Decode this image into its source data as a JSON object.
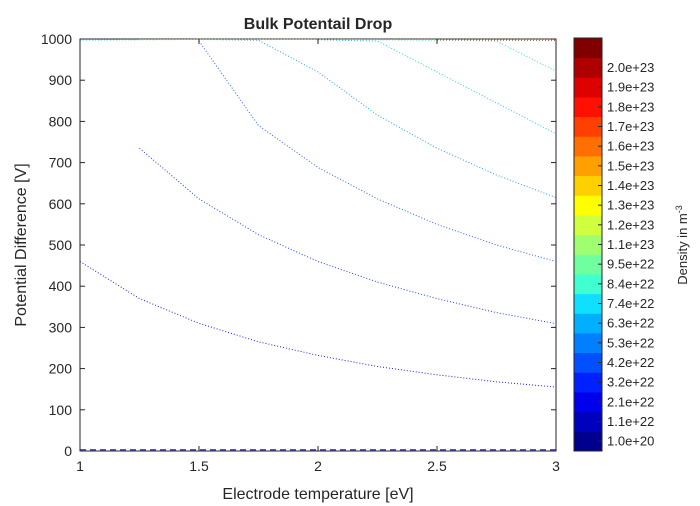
{
  "chart_data": {
    "type": "contour",
    "title": "Bulk Potentail Drop",
    "xlabel": "Electrode temperature [eV]",
    "ylabel": "Potential Difference [V]",
    "xlim": [
      1,
      3
    ],
    "ylim": [
      0,
      1000
    ],
    "xticks": [
      "1",
      "1.5",
      "2",
      "2.5",
      "3"
    ],
    "yticks": [
      "0",
      "100",
      "200",
      "300",
      "400",
      "500",
      "600",
      "700",
      "800",
      "900",
      "1000"
    ],
    "grid": false,
    "colorbar": {
      "label": "Density in m",
      "label_exponent": "-3",
      "levels": [
        "1.0e+20",
        "1.1e+22",
        "2.1e+22",
        "3.2e+22",
        "4.2e+22",
        "5.3e+22",
        "6.3e+22",
        "7.4e+22",
        "8.4e+22",
        "9.5e+22",
        "1.1e+23",
        "1.2e+23",
        "1.3e+23",
        "1.4e+23",
        "1.5e+23",
        "1.6e+23",
        "1.7e+23",
        "1.8e+23",
        "1.9e+23",
        "2.0e+23"
      ],
      "colors": [
        "#00008f",
        "#0000bf",
        "#0000ef",
        "#0020ff",
        "#0050ff",
        "#0080ff",
        "#00b0ff",
        "#10e0ff",
        "#40ffd0",
        "#70ffa0",
        "#a0ff70",
        "#d0ff40",
        "#ffff00",
        "#ffd000",
        "#ffa000",
        "#ff7000",
        "#ff4000",
        "#ff1000",
        "#df0000",
        "#af0000",
        "#800000"
      ]
    },
    "series": [
      {
        "color": "#1a10e0",
        "dash": "dashed",
        "x": [
          1,
          3
        ],
        "y": [
          3,
          3
        ]
      },
      {
        "color": "#2222d0",
        "x": [
          1,
          1.25,
          1.5,
          1.75,
          2,
          2.25,
          2.5,
          2.75,
          3
        ],
        "y": [
          460,
          370,
          310,
          265,
          232,
          205,
          185,
          168,
          155
        ]
      },
      {
        "color": "#2244dd",
        "x": [
          1.25,
          1.5,
          1.75,
          2,
          2.25,
          2.5,
          2.75,
          3
        ],
        "y": [
          735,
          612,
          525,
          460,
          410,
          370,
          336,
          309
        ]
      },
      {
        "color": "#2a66e0",
        "x": [
          1.5,
          1.75,
          2,
          2.25,
          2.5,
          2.75,
          3
        ],
        "y": [
          995,
          790,
          688,
          612,
          550,
          500,
          460
        ]
      },
      {
        "color": "#2aa0e0",
        "x": [
          1.5,
          1.75,
          2,
          2.25,
          2.5,
          2.75,
          3
        ],
        "y": [
          999,
          997,
          920,
          815,
          735,
          670,
          615
        ]
      },
      {
        "color": "#30c8e8",
        "x": [
          2,
          2.25,
          2.5,
          2.75,
          3
        ],
        "y": [
          998,
          995,
          920,
          845,
          770
        ]
      },
      {
        "color": "#40ddd0",
        "x": [
          2.5,
          2.75,
          3
        ],
        "y": [
          998,
          995,
          922
        ]
      },
      {
        "color": "#40e8e8",
        "x": [
          1,
          1.25,
          1.5,
          2,
          2.5,
          3
        ],
        "y": [
          997,
          998,
          999,
          999,
          997,
          996
        ]
      },
      {
        "color": "#ffb000",
        "x": [
          1.25,
          3
        ],
        "y": [
          999,
          999
        ]
      },
      {
        "color": "#e03000",
        "x": [
          2.5,
          3
        ],
        "y": [
          998,
          997
        ]
      }
    ]
  }
}
